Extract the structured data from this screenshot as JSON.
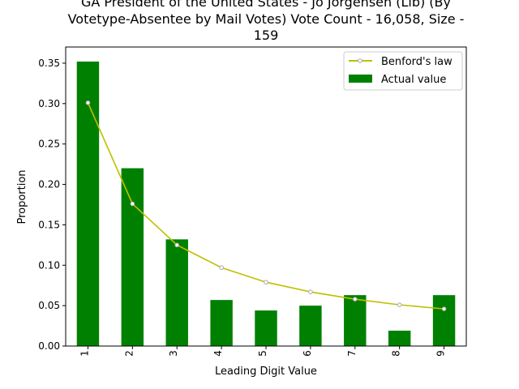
{
  "chart_data": {
    "type": "bar",
    "title_lines": [
      "GA President of the United States - Jo Jorgensen (Lib) (By",
      "Votetype-Absentee by Mail Votes) Vote Count - 16,058, Size -",
      "159"
    ],
    "xlabel": "Leading Digit Value",
    "ylabel": "Proportion",
    "categories": [
      "1",
      "2",
      "3",
      "4",
      "5",
      "6",
      "7",
      "8",
      "9"
    ],
    "series": [
      {
        "name": "Actual value",
        "kind": "bar",
        "color": "#008000",
        "values": [
          0.352,
          0.22,
          0.132,
          0.057,
          0.044,
          0.05,
          0.063,
          0.019,
          0.063
        ]
      },
      {
        "name": "Benford's law",
        "kind": "line",
        "color": "#bfbf00",
        "marker_color": "#aaaaaa",
        "values": [
          0.301,
          0.176,
          0.125,
          0.097,
          0.079,
          0.067,
          0.058,
          0.051,
          0.046
        ]
      }
    ],
    "ylim": [
      0,
      0.37
    ],
    "yticks": [
      0.0,
      0.05,
      0.1,
      0.15,
      0.2,
      0.25,
      0.3,
      0.35
    ],
    "ytick_labels": [
      "0.00",
      "0.05",
      "0.10",
      "0.15",
      "0.20",
      "0.25",
      "0.30",
      "0.35"
    ],
    "grid": false,
    "legend_position": "top-right"
  }
}
